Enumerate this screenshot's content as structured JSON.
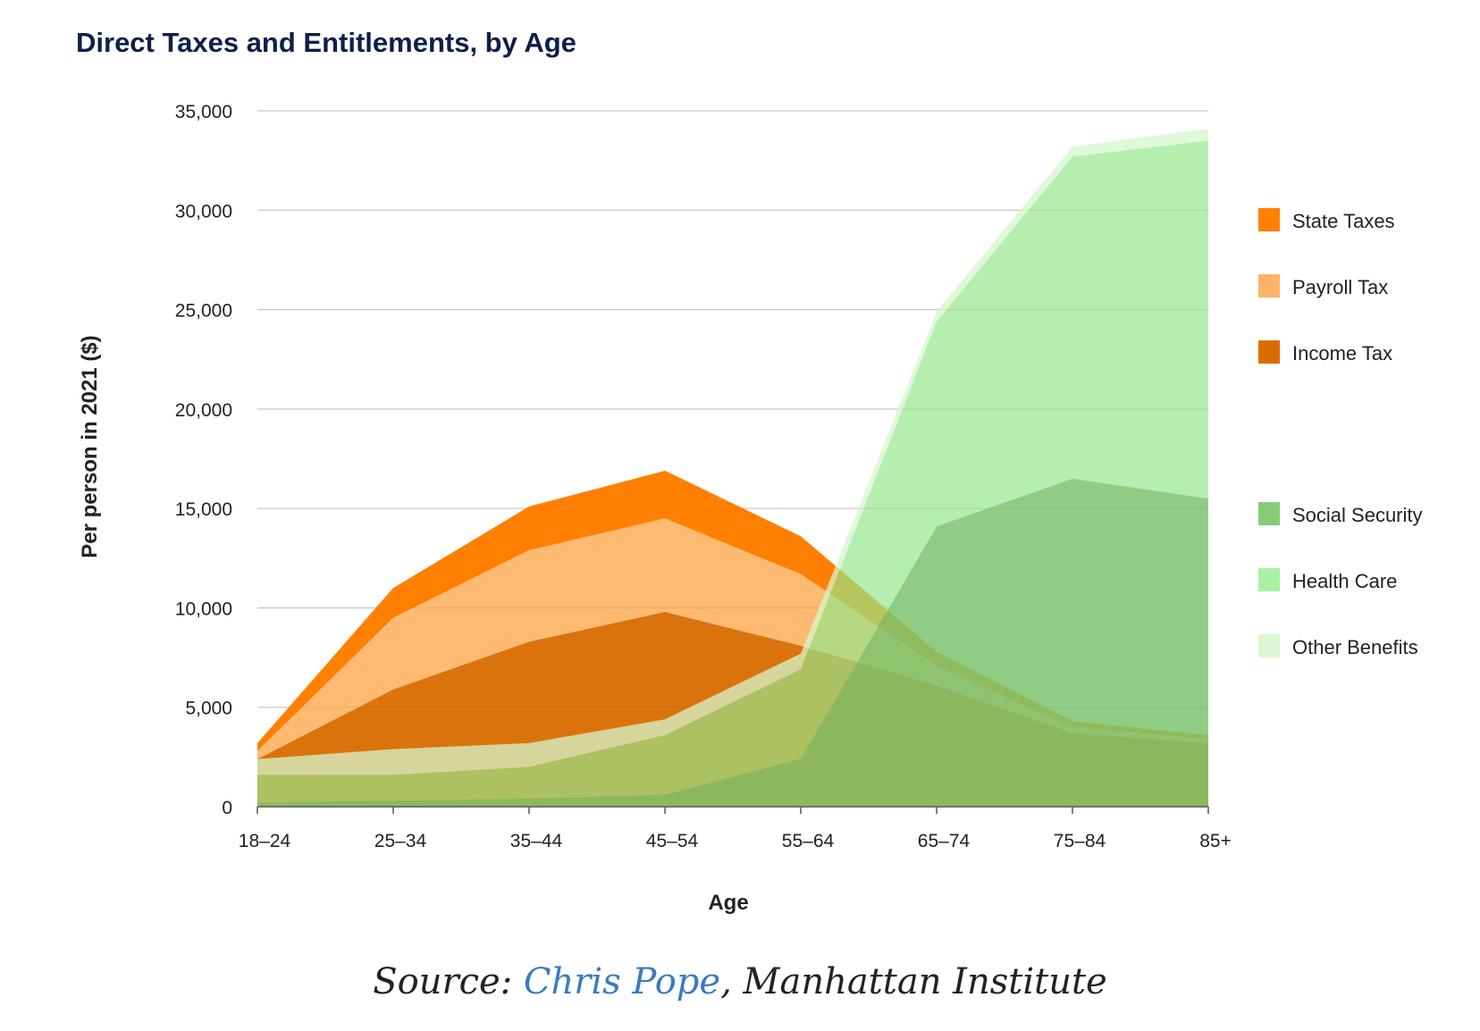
{
  "chart_data": {
    "type": "area",
    "title": "Direct Taxes and Entitlements, by Age",
    "xlabel": "Age",
    "ylabel": "Per person in 2021 ($)",
    "ylim": [
      0,
      35000
    ],
    "yticks": [
      0,
      5000,
      10000,
      15000,
      20000,
      25000,
      30000,
      35000
    ],
    "ytick_labels": [
      "0",
      "5,000",
      "10,000",
      "15,000",
      "20,000",
      "25,000",
      "30,000",
      "35,000"
    ],
    "categories": [
      "18–24",
      "25–34",
      "35–44",
      "45–54",
      "55–64",
      "65–74",
      "75–84",
      "85+"
    ],
    "stacked": true,
    "groups": [
      {
        "name": "Taxes",
        "series": [
          {
            "name": "Income Tax",
            "color": "#d96b00",
            "opacity": 0.95,
            "values": [
              2400,
              5900,
              8300,
              9800,
              8100,
              6100,
              3700,
              3200
            ]
          },
          {
            "name": "Payroll Tax",
            "color": "#ffa94d",
            "opacity": 0.8,
            "values": [
              400,
              3600,
              4600,
              4700,
              3600,
              1000,
              300,
              200
            ]
          },
          {
            "name": "State Taxes",
            "color": "#ff7f00",
            "opacity": 1.0,
            "values": [
              400,
              1500,
              2200,
              2400,
              1900,
              700,
              300,
              200
            ]
          }
        ]
      },
      {
        "name": "Entitlements",
        "series": [
          {
            "name": "Social Security",
            "color": "#7cc46e",
            "opacity": 0.85,
            "values": [
              200,
              300,
              400,
              600,
              2400,
              14100,
              16500,
              15500
            ]
          },
          {
            "name": "Health Care",
            "color": "#93e68a",
            "opacity": 0.68,
            "values": [
              1400,
              1300,
              1600,
              3000,
              4500,
              10300,
              16200,
              18000
            ]
          },
          {
            "name": "Other Benefits",
            "color": "#d4f5cc",
            "opacity": 0.75,
            "values": [
              800,
              1300,
              1200,
              800,
              800,
              500,
              500,
              600
            ]
          }
        ]
      }
    ],
    "legend": {
      "placement": "right",
      "items": [
        {
          "label": "State Taxes",
          "color": "#ff7f00"
        },
        {
          "label": "Payroll Tax",
          "color": "#ffb366"
        },
        {
          "label": "Income Tax",
          "color": "#dd6c00"
        },
        {
          "label": "Social Security",
          "color": "#86cc78"
        },
        {
          "label": "Health Care",
          "color": "#aaf0a2"
        },
        {
          "label": "Other Benefits",
          "color": "#dbf7d4"
        }
      ]
    }
  },
  "source": {
    "prefix": "Source: ",
    "link_text": "Chris Pope",
    "suffix": ", Manhattan Institute"
  },
  "colors": {
    "title": "#0f1f4a",
    "source_link": "#3a7bbf"
  }
}
